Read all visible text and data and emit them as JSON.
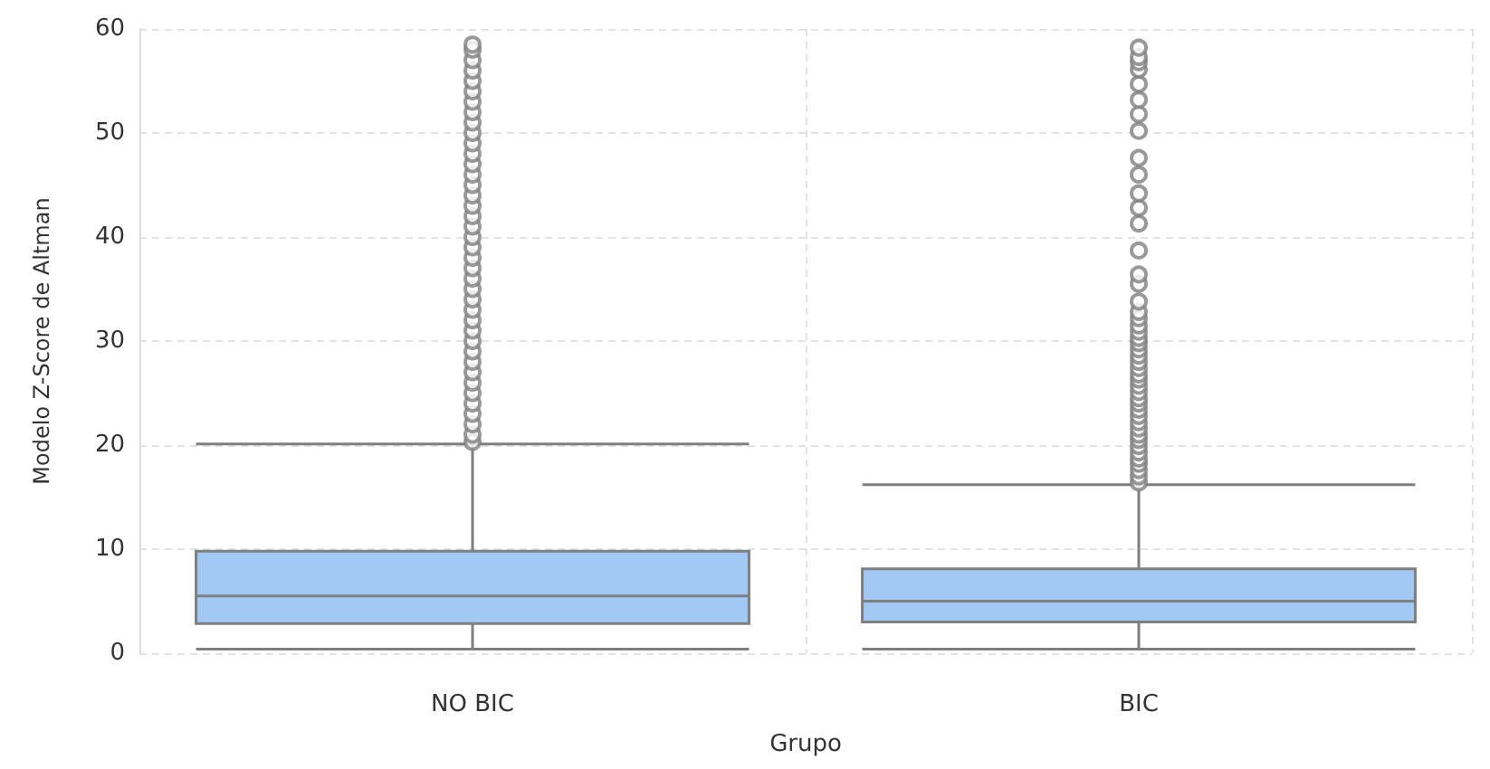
{
  "chart_data": {
    "type": "box",
    "xlabel": "Grupo",
    "ylabel": "Modelo Z-Score de Altman",
    "categories": [
      "NO BIC",
      "BIC"
    ],
    "color": "#a1c9f4",
    "boxes": [
      {
        "low": 0.4,
        "q1": 2.85,
        "median": 5.5,
        "q3": 9.8,
        "high": 20.1,
        "outliers": [
          20.3,
          21,
          22,
          23,
          24,
          25,
          26,
          27,
          28,
          29,
          30,
          31,
          32,
          33,
          34,
          35,
          36,
          37,
          38,
          39,
          40,
          41,
          42,
          43,
          44,
          45,
          46,
          47,
          48,
          49,
          50,
          51,
          52,
          53,
          54,
          55,
          56,
          57,
          58,
          58.5
        ]
      },
      {
        "low": 0.4,
        "q1": 3.0,
        "median": 5.0,
        "q3": 8.1,
        "high": 16.2,
        "outliers": [
          16.4,
          17.0,
          17.6,
          18.2,
          18.7,
          19.3,
          19.9,
          20.5,
          21.0,
          21.6,
          22.2,
          22.8,
          23.4,
          24.0,
          24.5,
          25.1,
          25.7,
          26.3,
          26.8,
          27.4,
          28.0,
          28.6,
          29.2,
          29.8,
          30.3,
          30.9,
          31.5,
          32.2,
          32.8,
          33.8,
          35.5,
          36.4,
          38.7,
          41.3,
          42.8,
          44.2,
          46.0,
          47.6,
          50.2,
          51.8,
          53.2,
          54.7,
          56.1,
          56.8,
          57.3,
          58.2
        ]
      }
    ],
    "ylim": [
      0,
      60
    ],
    "yticks": [
      0,
      10,
      20,
      30,
      40,
      50,
      60
    ],
    "grid": true
  }
}
